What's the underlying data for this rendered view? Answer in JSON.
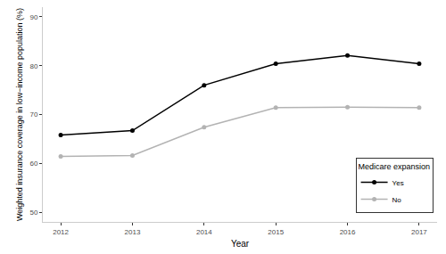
{
  "chart_data": {
    "type": "line",
    "x_label": "Year",
    "y_label": "Weighted insurance coverage in low−income population (%)",
    "x": [
      2012,
      2013,
      2014,
      2015,
      2016,
      2017
    ],
    "series": [
      {
        "name": "Yes",
        "color": "#000000",
        "values": [
          65.8,
          66.7,
          76.0,
          80.4,
          82.1,
          80.4
        ],
        "marker": "circle",
        "line_style": "solid"
      },
      {
        "name": "No",
        "color": "#b3b3b3",
        "values": [
          61.4,
          61.6,
          67.4,
          71.4,
          71.5,
          71.4
        ],
        "marker": "circle",
        "line_style": "solid"
      }
    ],
    "xlim": [
      2011.75,
      2017.25
    ],
    "xticks": [
      2012,
      2013,
      2014,
      2015,
      2016,
      2017
    ],
    "ylim": [
      48,
      92
    ],
    "yticks": [
      50,
      60,
      70,
      80,
      90
    ],
    "grid": false,
    "legend": "bottom right",
    "legend_title": "Medicare expansion"
  }
}
